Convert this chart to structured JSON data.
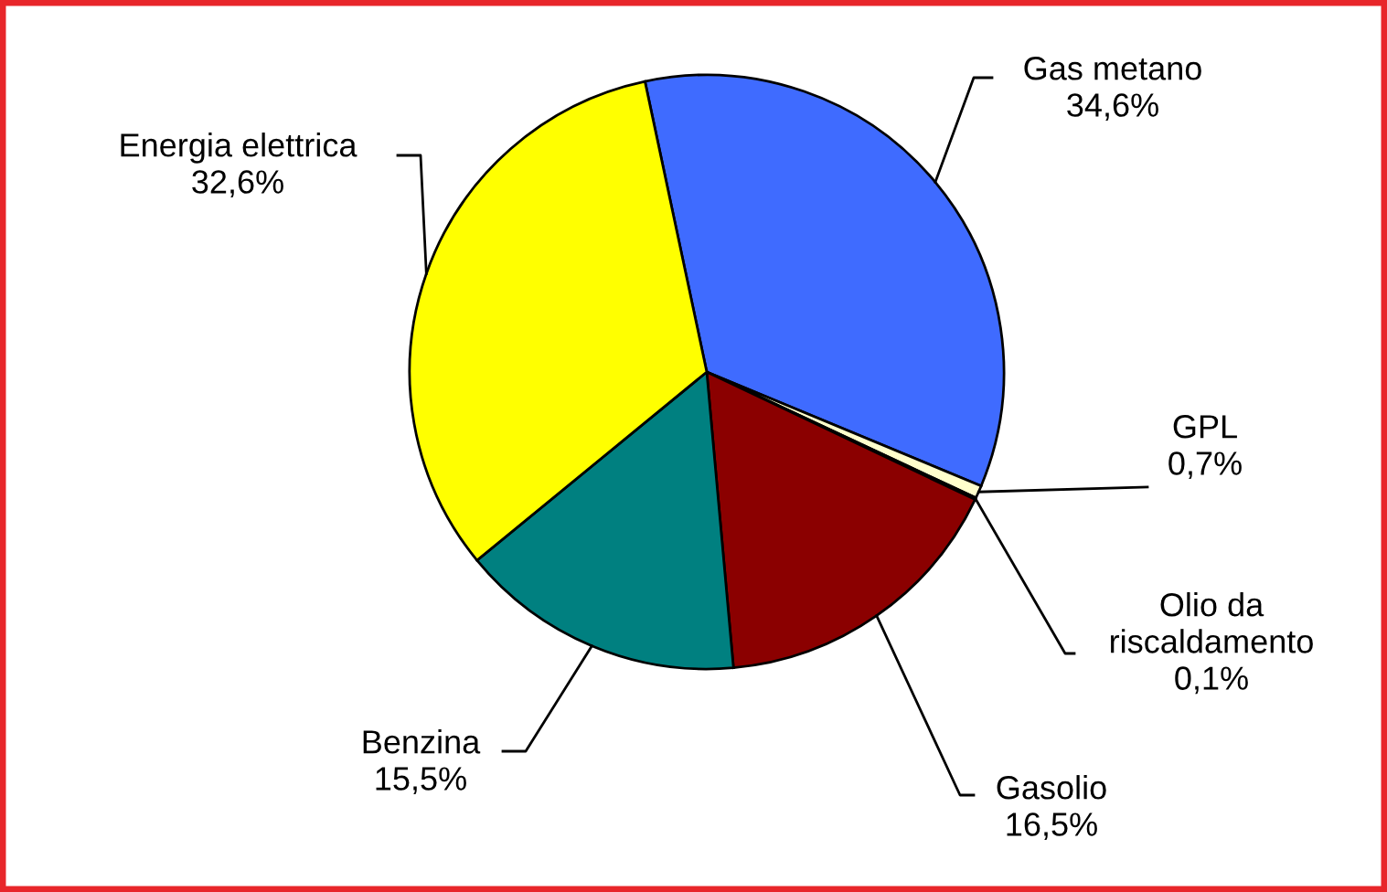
{
  "chart_data": {
    "type": "pie",
    "categories": [
      "Gas metano",
      "GPL",
      "Olio da\nriscaldamento",
      "Gasolio",
      "Benzina",
      "Energia elettrica"
    ],
    "values": [
      34.6,
      0.7,
      0.1,
      16.5,
      15.5,
      32.6
    ],
    "value_labels": [
      "34,6%",
      "0,7%",
      "0,1%",
      "16,5%",
      "15,5%",
      "32,6%"
    ],
    "colors": [
      "#3f6bff",
      "#ffffcc",
      "#f2f2f2",
      "#8b0000",
      "#008080",
      "#ffff00"
    ],
    "legend": false
  }
}
